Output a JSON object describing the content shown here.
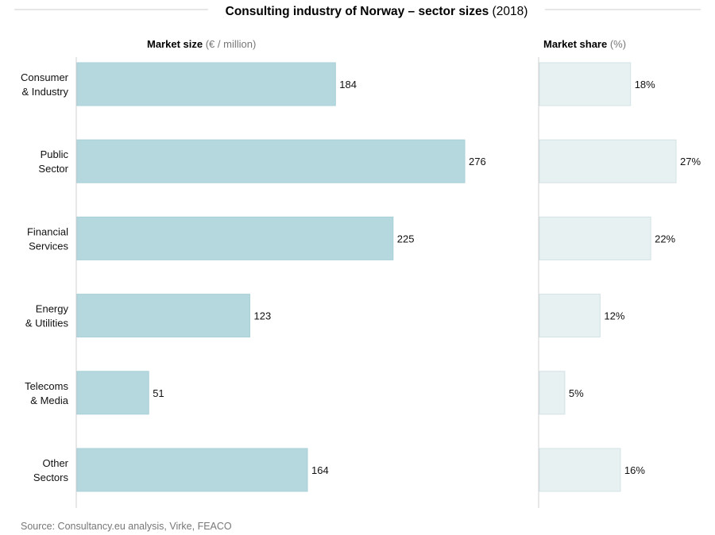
{
  "chart_data": {
    "type": "bar",
    "title": "Consulting industry of Norway – sector sizes",
    "title_suffix": "(2018)",
    "categories": [
      [
        "Consumer",
        "& Industry"
      ],
      [
        "Public",
        "Sector"
      ],
      [
        "Financial",
        "Services"
      ],
      [
        "Energy",
        "& Utilities"
      ],
      [
        "Telecoms",
        "& Media"
      ],
      [
        "Other",
        "Sectors"
      ]
    ],
    "panels": [
      {
        "id": "market-size",
        "header_bold": "Market size",
        "header_light": "(€ / million)",
        "values": [
          184,
          276,
          225,
          123,
          51,
          164
        ],
        "labels": [
          "184",
          "276",
          "225",
          "123",
          "51",
          "164"
        ],
        "xlim": [
          0,
          276
        ],
        "color": "#b5d8df"
      },
      {
        "id": "market-share",
        "header_bold": "Market share",
        "header_light": "(%)",
        "values": [
          18,
          27,
          22,
          12,
          5,
          16
        ],
        "labels": [
          "18%",
          "27%",
          "22%",
          "12%",
          "5%",
          "16%"
        ],
        "xlim": [
          0,
          27
        ],
        "color": "#e8f1f2"
      }
    ],
    "source": "Source: Consultancy.eu analysis, Virke, FEACO"
  }
}
